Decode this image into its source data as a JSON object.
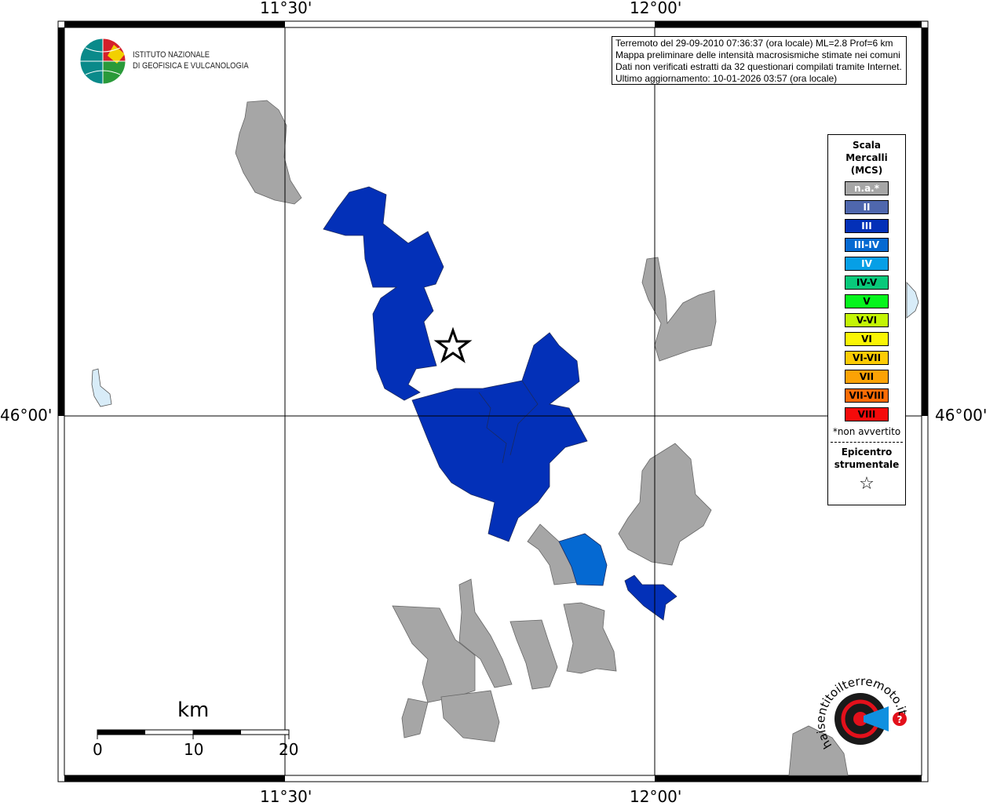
{
  "map": {
    "coordinates": {
      "lon_left": "11°30'",
      "lon_right": "12°00'",
      "lat": "46°00'"
    },
    "info_box": {
      "line1": "Terremoto del 29-09-2010 07:36:37 (ora locale) ML=2.8 Prof=6 km",
      "line2": "Mappa preliminare delle intensità macrosismiche stimate nei comuni",
      "line3": "Dati non verificati estratti da 32 questionari compilati tramite Internet.",
      "line4": "Ultimo aggiornamento: 10-01-2026 03:57 (ora locale)"
    },
    "logo_ingv": {
      "line1": "ISTITUTO NAZIONALE",
      "line2": "DI GEOFISICA E VULCANOLOGIA"
    },
    "logo_haisentito": "www.haisentitoilterremoto.it",
    "legend": {
      "title": [
        "Scala",
        "Mercalli",
        "(MCS)"
      ],
      "items": [
        {
          "label": "n.a.*",
          "color": "#a6a6a6",
          "text_color": "#ffffff"
        },
        {
          "label": "II",
          "color": "#4f67ad",
          "text_color": "#ffffff"
        },
        {
          "label": "III",
          "color": "#0330b8",
          "text_color": "#ffffff"
        },
        {
          "label": "III-IV",
          "color": "#0569d2",
          "text_color": "#ffffff"
        },
        {
          "label": "IV",
          "color": "#069fe6",
          "text_color": "#ffffff"
        },
        {
          "label": "IV-V",
          "color": "#08c97b",
          "text_color": "#000000"
        },
        {
          "label": "V",
          "color": "#05f51d",
          "text_color": "#000000"
        },
        {
          "label": "V-VI",
          "color": "#c3f505",
          "text_color": "#000000"
        },
        {
          "label": "VI",
          "color": "#faf505",
          "text_color": "#000000"
        },
        {
          "label": "VI-VII",
          "color": "#fccb05",
          "text_color": "#000000"
        },
        {
          "label": "VII",
          "color": "#fca205",
          "text_color": "#000000"
        },
        {
          "label": "VII-VIII",
          "color": "#fc6c05",
          "text_color": "#000000"
        },
        {
          "label": "VIII",
          "color": "#f50a0a",
          "text_color": "#000000"
        }
      ],
      "note": "*non avvertito",
      "epicenter_label": [
        "Epicentro",
        "strumentale"
      ]
    },
    "scale_bar": {
      "unit": "km",
      "ticks": [
        "0",
        "10",
        "20"
      ]
    },
    "colors": {
      "not_felt": "#a6a6a6",
      "iii": "#0330b8",
      "iii_iv": "#0569d2",
      "lake": "#d8ecf8"
    }
  }
}
